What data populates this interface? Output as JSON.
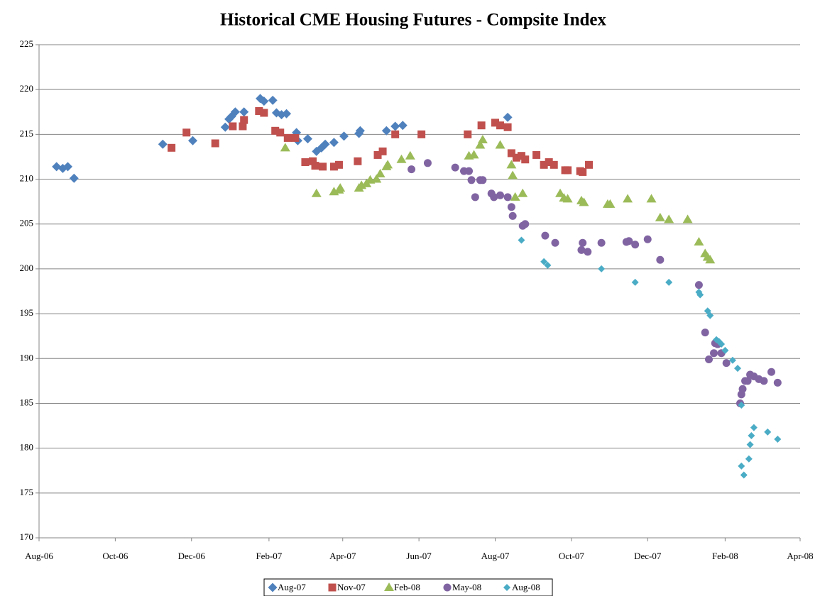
{
  "chart_data": {
    "type": "scatter",
    "title": "Historical CME Housing Futures - Compsite Index",
    "xlim": [
      38930,
      39539
    ],
    "xticks": [
      {
        "value": 38930,
        "label": "Aug-06"
      },
      {
        "value": 38991,
        "label": "Oct-06"
      },
      {
        "value": 39052,
        "label": "Dec-06"
      },
      {
        "value": 39114,
        "label": "Feb-07"
      },
      {
        "value": 39173,
        "label": "Apr-07"
      },
      {
        "value": 39234,
        "label": "Jun-07"
      },
      {
        "value": 39295,
        "label": "Aug-07"
      },
      {
        "value": 39356,
        "label": "Oct-07"
      },
      {
        "value": 39417,
        "label": "Dec-07"
      },
      {
        "value": 39479,
        "label": "Feb-08"
      },
      {
        "value": 39539,
        "label": "Apr-08"
      }
    ],
    "ylim": [
      170,
      225
    ],
    "yticks": [
      170,
      175,
      180,
      185,
      190,
      195,
      200,
      205,
      210,
      215,
      220,
      225
    ],
    "grid": true,
    "legend": "bottom",
    "series": [
      {
        "name": "Aug-07",
        "color": "#4f81bd",
        "marker": "diamond",
        "x": [
          38944,
          38949,
          38953,
          38958,
          39029,
          39053,
          39079,
          39082,
          39084,
          39087,
          39094,
          39107,
          39110,
          39117,
          39120,
          39124,
          39128,
          39136,
          39137,
          39145,
          39152,
          39156,
          39159,
          39166,
          39174,
          39186,
          39187,
          39208,
          39215,
          39221,
          39305
        ],
        "values": [
          211.4,
          211.2,
          211.4,
          210.1,
          213.9,
          214.3,
          215.8,
          216.7,
          217.0,
          217.5,
          217.5,
          219.0,
          218.7,
          218.8,
          217.4,
          217.2,
          217.3,
          215.2,
          214.3,
          214.5,
          213.1,
          213.5,
          213.9,
          214.1,
          214.8,
          215.1,
          215.4,
          215.4,
          215.9,
          216.0,
          216.9
        ]
      },
      {
        "name": "Nov-07",
        "color": "#c0504d",
        "marker": "square",
        "x": [
          39036,
          39048,
          39071,
          39085,
          39093,
          39094,
          39106,
          39110,
          39119,
          39123,
          39129,
          39135,
          39143,
          39149,
          39151,
          39157,
          39166,
          39170,
          39185,
          39201,
          39205,
          39215,
          39236,
          39273,
          39284,
          39295,
          39299,
          39305,
          39308,
          39312,
          39316,
          39319,
          39328,
          39334,
          39338,
          39342,
          39351,
          39353,
          39363,
          39365,
          39370
        ],
        "values": [
          213.5,
          215.2,
          214.0,
          215.9,
          215.9,
          216.6,
          217.6,
          217.4,
          215.4,
          215.2,
          214.6,
          214.6,
          211.9,
          212.0,
          211.5,
          211.4,
          211.4,
          211.6,
          212.0,
          212.7,
          213.1,
          215.0,
          215.0,
          215.0,
          216.0,
          216.3,
          216.0,
          215.8,
          212.9,
          212.4,
          212.6,
          212.2,
          212.7,
          211.6,
          211.9,
          211.6,
          211.0,
          211.0,
          210.9,
          210.8,
          211.6
        ]
      },
      {
        "name": "Feb-08",
        "color": "#9bbb59",
        "marker": "triangle",
        "x": [
          39127,
          39152,
          39166,
          39170,
          39171,
          39186,
          39188,
          39192,
          39195,
          39200,
          39203,
          39208,
          39209,
          39220,
          39227,
          39274,
          39278,
          39283,
          39285,
          39299,
          39308,
          39309,
          39311,
          39317,
          39347,
          39350,
          39353,
          39364,
          39366,
          39385,
          39387,
          39401,
          39420,
          39427,
          39434,
          39449,
          39458,
          39463,
          39465,
          39467
        ],
        "values": [
          213.5,
          208.4,
          208.6,
          208.8,
          209.0,
          209.0,
          209.3,
          209.5,
          209.9,
          210.0,
          210.6,
          211.4,
          211.6,
          212.2,
          212.6,
          212.6,
          212.7,
          213.8,
          214.4,
          213.8,
          211.6,
          210.4,
          208.0,
          208.4,
          208.4,
          207.9,
          207.8,
          207.6,
          207.4,
          207.2,
          207.2,
          207.8,
          207.8,
          205.7,
          205.5,
          205.5,
          203.0,
          201.7,
          201.3,
          201.0
        ]
      },
      {
        "name": "May-08",
        "color": "#8064a2",
        "marker": "circle",
        "x": [
          39228,
          39241,
          39263,
          39270,
          39274,
          39276,
          39279,
          39283,
          39285,
          39292,
          39294,
          39299,
          39305,
          39308,
          39309,
          39317,
          39319,
          39335,
          39343,
          39364,
          39365,
          39369,
          39380,
          39400,
          39402,
          39407,
          39417,
          39427,
          39458,
          39463,
          39466,
          39470,
          39471,
          39473,
          39476,
          39480,
          39491,
          39492,
          39493,
          39495,
          39497,
          39499,
          39502,
          39506,
          39510,
          39516,
          39521
        ],
        "values": [
          211.1,
          211.8,
          211.3,
          210.9,
          210.9,
          209.9,
          208.0,
          209.9,
          209.9,
          208.4,
          208.0,
          208.2,
          208.0,
          206.9,
          205.9,
          204.8,
          205.0,
          203.7,
          202.9,
          202.1,
          202.9,
          201.9,
          202.9,
          203.0,
          203.1,
          202.7,
          203.3,
          201.0,
          198.2,
          192.9,
          189.9,
          190.6,
          191.7,
          191.6,
          190.6,
          189.5,
          185.0,
          186.0,
          186.6,
          187.5,
          187.5,
          188.2,
          188.0,
          187.7,
          187.5,
          188.5,
          187.3
        ]
      },
      {
        "name": "Aug-08",
        "color": "#4bacc6",
        "marker": "small-diamond",
        "x": [
          39316,
          39334,
          39337,
          39380,
          39407,
          39434,
          39458,
          39459,
          39465,
          39467,
          39472,
          39474,
          39476,
          39479,
          39485,
          39489,
          39492,
          39492,
          39494,
          39498,
          39499,
          39500,
          39502,
          39513,
          39521
        ],
        "values": [
          203.2,
          200.8,
          200.4,
          200.0,
          198.5,
          198.5,
          197.4,
          197.1,
          195.3,
          194.8,
          192.1,
          191.9,
          191.6,
          190.9,
          189.8,
          188.9,
          184.8,
          178.0,
          177.0,
          178.8,
          180.4,
          181.4,
          182.3,
          181.8,
          181.0
        ]
      }
    ]
  }
}
